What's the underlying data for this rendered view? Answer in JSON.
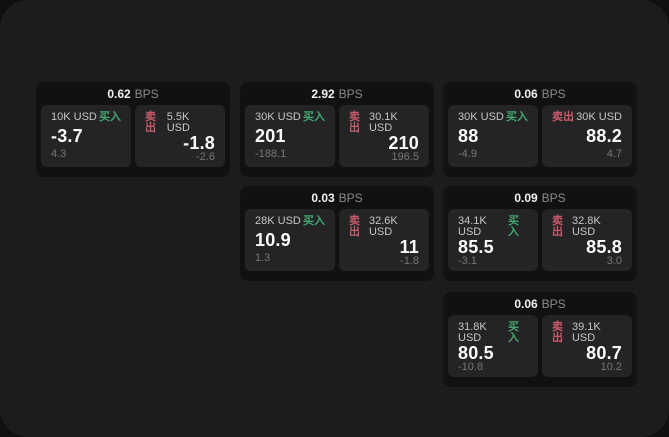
{
  "labels": {
    "bps": "BPS",
    "buy": "买入",
    "sell": "卖出"
  },
  "colors": {
    "buy": "#45a56e",
    "sell": "#c75b68",
    "panel": "#1c1c1d",
    "card": "#111112",
    "tile": "#242426"
  },
  "cards": [
    {
      "bps": "0.62",
      "buy": {
        "amount": "10K USD",
        "price": "-3.7",
        "delta": "4.3"
      },
      "sell": {
        "amount": "5.5K USD",
        "price": "-1.8",
        "delta": "-2.6"
      }
    },
    {
      "bps": "2.92",
      "buy": {
        "amount": "30K USD",
        "price": "201",
        "delta": "-188.1"
      },
      "sell": {
        "amount": "30.1K USD",
        "price": "210",
        "delta": "196.5"
      }
    },
    {
      "bps": "0.06",
      "buy": {
        "amount": "30K USD",
        "price": "88",
        "delta": "-4.9"
      },
      "sell": {
        "amount": "30K USD",
        "price": "88.2",
        "delta": "4.7"
      }
    },
    {
      "bps": "0.03",
      "buy": {
        "amount": "28K USD",
        "price": "10.9",
        "delta": "1.3"
      },
      "sell": {
        "amount": "32.6K USD",
        "price": "11",
        "delta": "-1.8"
      }
    },
    {
      "bps": "0.09",
      "buy": {
        "amount": "34.1K USD",
        "price": "85.5",
        "delta": "-3.1"
      },
      "sell": {
        "amount": "32.8K USD",
        "price": "85.8",
        "delta": "3.0"
      }
    },
    {
      "bps": "0.06",
      "buy": {
        "amount": "31.8K USD",
        "price": "80.5",
        "delta": "-10.8"
      },
      "sell": {
        "amount": "39.1K USD",
        "price": "80.7",
        "delta": "10.2"
      }
    }
  ]
}
